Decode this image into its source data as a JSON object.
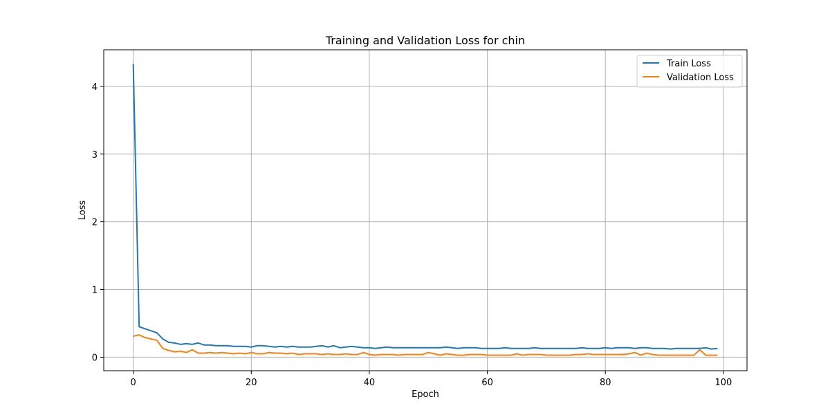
{
  "chart_data": {
    "type": "line",
    "title": "Training and Validation Loss for chin",
    "xlabel": "Epoch",
    "ylabel": "Loss",
    "xlim": [
      -5,
      104
    ],
    "ylim": [
      -0.2,
      4.54
    ],
    "xticks": [
      0,
      20,
      40,
      60,
      80,
      100
    ],
    "yticks": [
      0,
      1,
      2,
      3,
      4
    ],
    "grid": true,
    "legend_position": "top-right",
    "series": [
      {
        "name": "Train Loss",
        "color": "#1f77b4",
        "values": [
          4.33,
          0.45,
          0.42,
          0.39,
          0.36,
          0.27,
          0.22,
          0.21,
          0.19,
          0.2,
          0.19,
          0.21,
          0.18,
          0.18,
          0.17,
          0.17,
          0.17,
          0.16,
          0.16,
          0.16,
          0.15,
          0.17,
          0.17,
          0.16,
          0.15,
          0.16,
          0.15,
          0.16,
          0.15,
          0.15,
          0.15,
          0.16,
          0.17,
          0.15,
          0.17,
          0.14,
          0.15,
          0.16,
          0.15,
          0.14,
          0.14,
          0.13,
          0.14,
          0.15,
          0.14,
          0.14,
          0.14,
          0.14,
          0.14,
          0.14,
          0.14,
          0.14,
          0.14,
          0.15,
          0.14,
          0.13,
          0.14,
          0.14,
          0.14,
          0.13,
          0.13,
          0.13,
          0.13,
          0.14,
          0.13,
          0.13,
          0.13,
          0.13,
          0.14,
          0.13,
          0.13,
          0.13,
          0.13,
          0.13,
          0.13,
          0.13,
          0.14,
          0.13,
          0.13,
          0.13,
          0.14,
          0.13,
          0.14,
          0.14,
          0.14,
          0.13,
          0.14,
          0.14,
          0.13,
          0.13,
          0.13,
          0.12,
          0.13,
          0.13,
          0.13,
          0.13,
          0.13,
          0.14,
          0.12,
          0.13
        ]
      },
      {
        "name": "Validation Loss",
        "color": "#ff7f0e",
        "values": [
          0.31,
          0.33,
          0.29,
          0.27,
          0.25,
          0.13,
          0.1,
          0.08,
          0.09,
          0.07,
          0.11,
          0.06,
          0.06,
          0.07,
          0.06,
          0.07,
          0.06,
          0.05,
          0.06,
          0.05,
          0.07,
          0.05,
          0.05,
          0.07,
          0.06,
          0.06,
          0.05,
          0.06,
          0.04,
          0.05,
          0.05,
          0.05,
          0.04,
          0.05,
          0.04,
          0.04,
          0.05,
          0.04,
          0.04,
          0.07,
          0.04,
          0.03,
          0.04,
          0.04,
          0.04,
          0.03,
          0.04,
          0.04,
          0.04,
          0.04,
          0.07,
          0.05,
          0.03,
          0.05,
          0.04,
          0.03,
          0.03,
          0.04,
          0.04,
          0.04,
          0.03,
          0.03,
          0.03,
          0.03,
          0.03,
          0.05,
          0.03,
          0.04,
          0.04,
          0.04,
          0.03,
          0.03,
          0.03,
          0.03,
          0.03,
          0.04,
          0.04,
          0.05,
          0.04,
          0.04,
          0.04,
          0.04,
          0.04,
          0.04,
          0.05,
          0.07,
          0.03,
          0.06,
          0.04,
          0.03,
          0.03,
          0.03,
          0.03,
          0.03,
          0.03,
          0.03,
          0.11,
          0.03,
          0.03,
          0.03
        ]
      }
    ]
  }
}
